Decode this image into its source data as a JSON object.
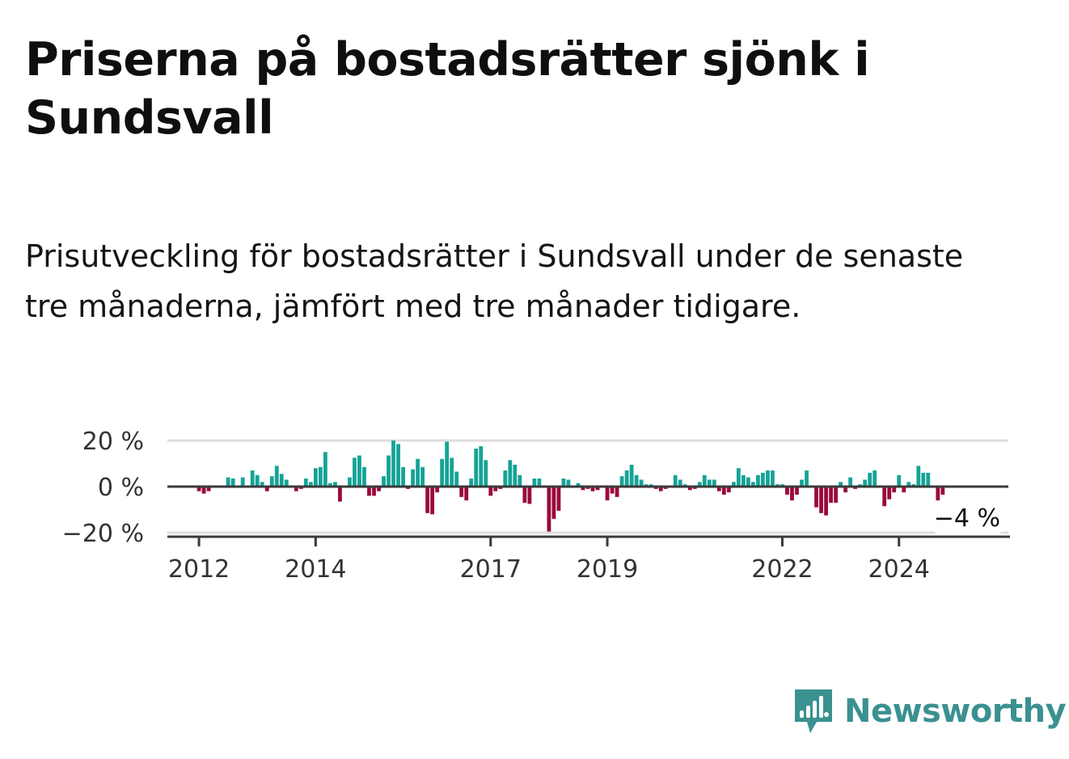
{
  "title": "Priserna på bostadsrätter sjönk i Sundsvall",
  "subtitle": "Prisutveckling för bostadsrätter i Sundsvall under de senaste tre månaderna, jämfört med tre månader tidigare.",
  "brand": {
    "name": "Newsworthy",
    "color": "#3a9190"
  },
  "colors": {
    "positive": "#16a396",
    "negative": "#9a0a3c",
    "axis": "#3a3a3a",
    "grid": "#dddddd"
  },
  "chart_data": {
    "type": "bar",
    "title": "",
    "xlabel": "",
    "ylabel": "",
    "unit": "%",
    "ylim": [
      -22,
      22
    ],
    "grid": true,
    "x_start": "2011-07",
    "x_end": "2025-12",
    "yticks": [
      {
        "value": 20,
        "label": "20 %"
      },
      {
        "value": 0,
        "label": "0 %"
      },
      {
        "value": -20,
        "label": "−20 %"
      }
    ],
    "xticks": [
      {
        "date": "2012-01",
        "label": "2012"
      },
      {
        "date": "2014-01",
        "label": "2014"
      },
      {
        "date": "2017-01",
        "label": "2017"
      },
      {
        "date": "2019-01",
        "label": "2019"
      },
      {
        "date": "2022-01",
        "label": "2022"
      },
      {
        "date": "2024-01",
        "label": "2024"
      }
    ],
    "end_label": {
      "date": "2025-02",
      "value": -4,
      "text": "−4 %"
    },
    "series": [
      {
        "values": [
          {
            "date": "2012-01",
            "value": -2
          },
          {
            "date": "2012-02",
            "value": -3
          },
          {
            "date": "2012-03",
            "value": -2
          },
          {
            "date": "2012-04",
            "value": 0.5
          },
          {
            "date": "2012-05",
            "value": 0
          },
          {
            "date": "2012-06",
            "value": 0.5
          },
          {
            "date": "2012-07",
            "value": 4
          },
          {
            "date": "2012-08",
            "value": 3.5
          },
          {
            "date": "2012-09",
            "value": 0.5
          },
          {
            "date": "2012-10",
            "value": 4
          },
          {
            "date": "2012-11",
            "value": 0.5
          },
          {
            "date": "2012-12",
            "value": 7
          },
          {
            "date": "2013-01",
            "value": 5
          },
          {
            "date": "2013-02",
            "value": 2
          },
          {
            "date": "2013-03",
            "value": -2
          },
          {
            "date": "2013-04",
            "value": 4.5
          },
          {
            "date": "2013-05",
            "value": 9
          },
          {
            "date": "2013-06",
            "value": 5.5
          },
          {
            "date": "2013-07",
            "value": 3
          },
          {
            "date": "2013-08",
            "value": 0.5
          },
          {
            "date": "2013-09",
            "value": -2
          },
          {
            "date": "2013-10",
            "value": -1
          },
          {
            "date": "2013-11",
            "value": 3.5
          },
          {
            "date": "2013-12",
            "value": 2
          },
          {
            "date": "2014-01",
            "value": 8
          },
          {
            "date": "2014-02",
            "value": 8.5
          },
          {
            "date": "2014-03",
            "value": 15
          },
          {
            "date": "2014-04",
            "value": 1.5
          },
          {
            "date": "2014-05",
            "value": 2
          },
          {
            "date": "2014-06",
            "value": -6.5
          },
          {
            "date": "2014-07",
            "value": 0.5
          },
          {
            "date": "2014-08",
            "value": 4
          },
          {
            "date": "2014-09",
            "value": 12.5
          },
          {
            "date": "2014-10",
            "value": 13.5
          },
          {
            "date": "2014-11",
            "value": 8.5
          },
          {
            "date": "2014-12",
            "value": -4
          },
          {
            "date": "2015-01",
            "value": -4
          },
          {
            "date": "2015-02",
            "value": -2
          },
          {
            "date": "2015-03",
            "value": 4.5
          },
          {
            "date": "2015-04",
            "value": 13.5
          },
          {
            "date": "2015-05",
            "value": 20
          },
          {
            "date": "2015-06",
            "value": 18.5
          },
          {
            "date": "2015-07",
            "value": 8.5
          },
          {
            "date": "2015-08",
            "value": -1
          },
          {
            "date": "2015-09",
            "value": 7.5
          },
          {
            "date": "2015-10",
            "value": 12
          },
          {
            "date": "2015-11",
            "value": 8.5
          },
          {
            "date": "2015-12",
            "value": -11.5
          },
          {
            "date": "2016-01",
            "value": -12
          },
          {
            "date": "2016-02",
            "value": -2.5
          },
          {
            "date": "2016-03",
            "value": 12
          },
          {
            "date": "2016-04",
            "value": 19.5
          },
          {
            "date": "2016-05",
            "value": 12.5
          },
          {
            "date": "2016-06",
            "value": 6.5
          },
          {
            "date": "2016-07",
            "value": -4.5
          },
          {
            "date": "2016-08",
            "value": -6
          },
          {
            "date": "2016-09",
            "value": 3.5
          },
          {
            "date": "2016-10",
            "value": 16.5
          },
          {
            "date": "2016-11",
            "value": 17.5
          },
          {
            "date": "2016-12",
            "value": 11.5
          },
          {
            "date": "2017-01",
            "value": -4
          },
          {
            "date": "2017-02",
            "value": -2
          },
          {
            "date": "2017-03",
            "value": -1
          },
          {
            "date": "2017-04",
            "value": 7
          },
          {
            "date": "2017-05",
            "value": 11.5
          },
          {
            "date": "2017-06",
            "value": 9.5
          },
          {
            "date": "2017-07",
            "value": 5
          },
          {
            "date": "2017-08",
            "value": -7
          },
          {
            "date": "2017-09",
            "value": -7.5
          },
          {
            "date": "2017-10",
            "value": 3.5
          },
          {
            "date": "2017-11",
            "value": 3.5
          },
          {
            "date": "2017-12",
            "value": 0.5
          },
          {
            "date": "2018-01",
            "value": -19.5
          },
          {
            "date": "2018-02",
            "value": -14
          },
          {
            "date": "2018-03",
            "value": -10.5
          },
          {
            "date": "2018-04",
            "value": 3.5
          },
          {
            "date": "2018-05",
            "value": 3
          },
          {
            "date": "2018-06",
            "value": 0.5
          },
          {
            "date": "2018-07",
            "value": 1.5
          },
          {
            "date": "2018-08",
            "value": -1.5
          },
          {
            "date": "2018-09",
            "value": -1
          },
          {
            "date": "2018-10",
            "value": -2
          },
          {
            "date": "2018-11",
            "value": -1.5
          },
          {
            "date": "2018-12",
            "value": -0.5
          },
          {
            "date": "2019-01",
            "value": -6
          },
          {
            "date": "2019-02",
            "value": -3
          },
          {
            "date": "2019-03",
            "value": -4.5
          },
          {
            "date": "2019-04",
            "value": 4.5
          },
          {
            "date": "2019-05",
            "value": 7
          },
          {
            "date": "2019-06",
            "value": 9.5
          },
          {
            "date": "2019-07",
            "value": 5
          },
          {
            "date": "2019-08",
            "value": 3
          },
          {
            "date": "2019-09",
            "value": 1
          },
          {
            "date": "2019-10",
            "value": 1
          },
          {
            "date": "2019-11",
            "value": -1
          },
          {
            "date": "2019-12",
            "value": -2
          },
          {
            "date": "2020-01",
            "value": -1
          },
          {
            "date": "2020-02",
            "value": 0.5
          },
          {
            "date": "2020-03",
            "value": 5
          },
          {
            "date": "2020-04",
            "value": 3
          },
          {
            "date": "2020-05",
            "value": 1
          },
          {
            "date": "2020-06",
            "value": -1.5
          },
          {
            "date": "2020-07",
            "value": -1
          },
          {
            "date": "2020-08",
            "value": 2
          },
          {
            "date": "2020-09",
            "value": 5
          },
          {
            "date": "2020-10",
            "value": 3
          },
          {
            "date": "2020-11",
            "value": 3
          },
          {
            "date": "2020-12",
            "value": -2
          },
          {
            "date": "2021-01",
            "value": -3.5
          },
          {
            "date": "2021-02",
            "value": -2.5
          },
          {
            "date": "2021-03",
            "value": 2
          },
          {
            "date": "2021-04",
            "value": 8
          },
          {
            "date": "2021-05",
            "value": 5
          },
          {
            "date": "2021-06",
            "value": 4
          },
          {
            "date": "2021-07",
            "value": 2
          },
          {
            "date": "2021-08",
            "value": 5
          },
          {
            "date": "2021-09",
            "value": 6
          },
          {
            "date": "2021-10",
            "value": 7
          },
          {
            "date": "2021-11",
            "value": 7
          },
          {
            "date": "2021-12",
            "value": 1
          },
          {
            "date": "2022-01",
            "value": 1
          },
          {
            "date": "2022-02",
            "value": -3.5
          },
          {
            "date": "2022-03",
            "value": -6
          },
          {
            "date": "2022-04",
            "value": -3.5
          },
          {
            "date": "2022-05",
            "value": 3
          },
          {
            "date": "2022-06",
            "value": 7
          },
          {
            "date": "2022-07",
            "value": -0.5
          },
          {
            "date": "2022-08",
            "value": -9
          },
          {
            "date": "2022-09",
            "value": -11.5
          },
          {
            "date": "2022-10",
            "value": -12.5
          },
          {
            "date": "2022-11",
            "value": -7
          },
          {
            "date": "2022-12",
            "value": -7
          },
          {
            "date": "2023-01",
            "value": 2
          },
          {
            "date": "2023-02",
            "value": -2.5
          },
          {
            "date": "2023-03",
            "value": 4
          },
          {
            "date": "2023-04",
            "value": -1
          },
          {
            "date": "2023-05",
            "value": 1
          },
          {
            "date": "2023-06",
            "value": 3
          },
          {
            "date": "2023-07",
            "value": 6
          },
          {
            "date": "2023-08",
            "value": 7
          },
          {
            "date": "2023-09",
            "value": -0.5
          },
          {
            "date": "2023-10",
            "value": -8.5
          },
          {
            "date": "2023-11",
            "value": -5.5
          },
          {
            "date": "2023-12",
            "value": -2.5
          },
          {
            "date": "2024-01",
            "value": 5
          },
          {
            "date": "2024-02",
            "value": -2.5
          },
          {
            "date": "2024-03",
            "value": 2
          },
          {
            "date": "2024-04",
            "value": 1
          },
          {
            "date": "2024-05",
            "value": 9
          },
          {
            "date": "2024-06",
            "value": 6
          },
          {
            "date": "2024-07",
            "value": 6
          },
          {
            "date": "2024-08",
            "value": -0.5
          },
          {
            "date": "2024-09",
            "value": -6
          },
          {
            "date": "2024-10",
            "value": -3.5
          }
        ]
      }
    ]
  }
}
